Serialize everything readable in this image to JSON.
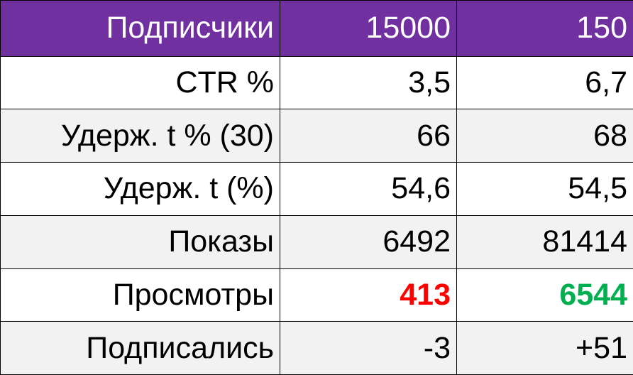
{
  "table": {
    "header": [
      "Подписчики",
      "15000",
      "150"
    ],
    "rows": [
      [
        "CTR %",
        "3,5",
        "6,7"
      ],
      [
        "Удерж. t % (30)",
        "66",
        "68"
      ],
      [
        "Удерж. t (%)",
        "54,6",
        "54,5"
      ],
      [
        "Показы",
        "6492",
        "81414"
      ],
      [
        "Просмотры",
        "413",
        "6544"
      ],
      [
        "Подписались",
        "-3",
        "+51"
      ]
    ]
  }
}
